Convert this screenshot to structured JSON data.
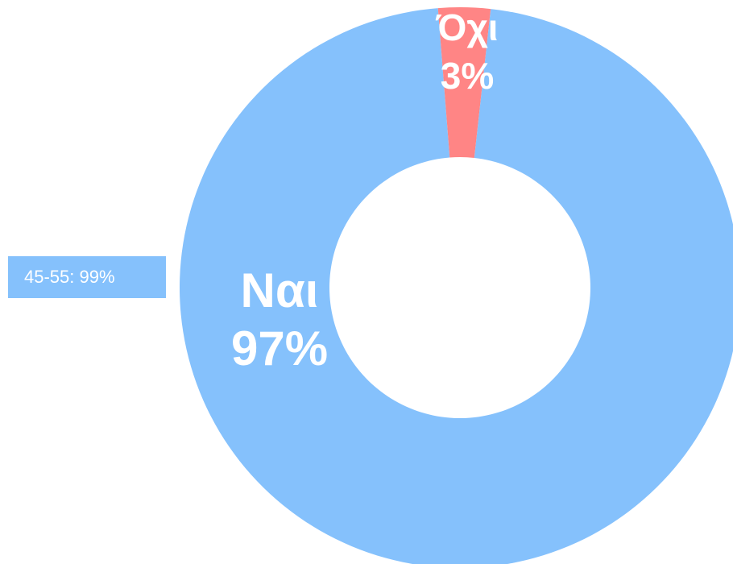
{
  "chart_data": {
    "type": "doughnut",
    "categories": [
      "Ναι",
      "Όχι"
    ],
    "values": [
      97,
      3
    ],
    "value_labels": [
      "97%",
      "3%"
    ],
    "colors": [
      "#85c1fc",
      "#ff8585"
    ],
    "tooltip": "45-55: 99%"
  }
}
